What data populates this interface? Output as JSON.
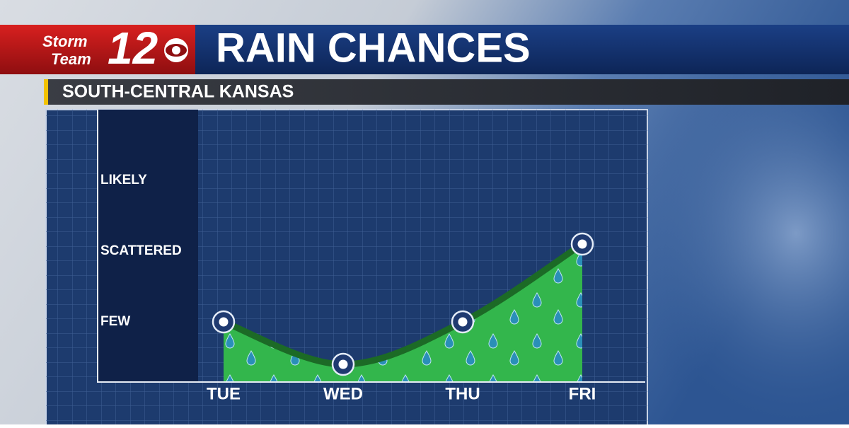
{
  "logo": {
    "line1": "Storm",
    "line2": "Team",
    "number": "12"
  },
  "chart_data": {
    "type": "area",
    "title": "RAIN CHANCES",
    "subtitle": "SOUTH-CENTRAL KANSAS",
    "categories": [
      "TUE",
      "WED",
      "THU",
      "FRI"
    ],
    "values": [
      1,
      0.4,
      1,
      2.1
    ],
    "color": "#1c6a26",
    "fill_color": "#33b64c",
    "ylim": [
      0,
      4
    ],
    "yticks": [
      {
        "value": 1,
        "label": "FEW"
      },
      {
        "value": 2,
        "label": "SCATTERED"
      },
      {
        "value": 3,
        "label": "LIKELY"
      }
    ]
  }
}
